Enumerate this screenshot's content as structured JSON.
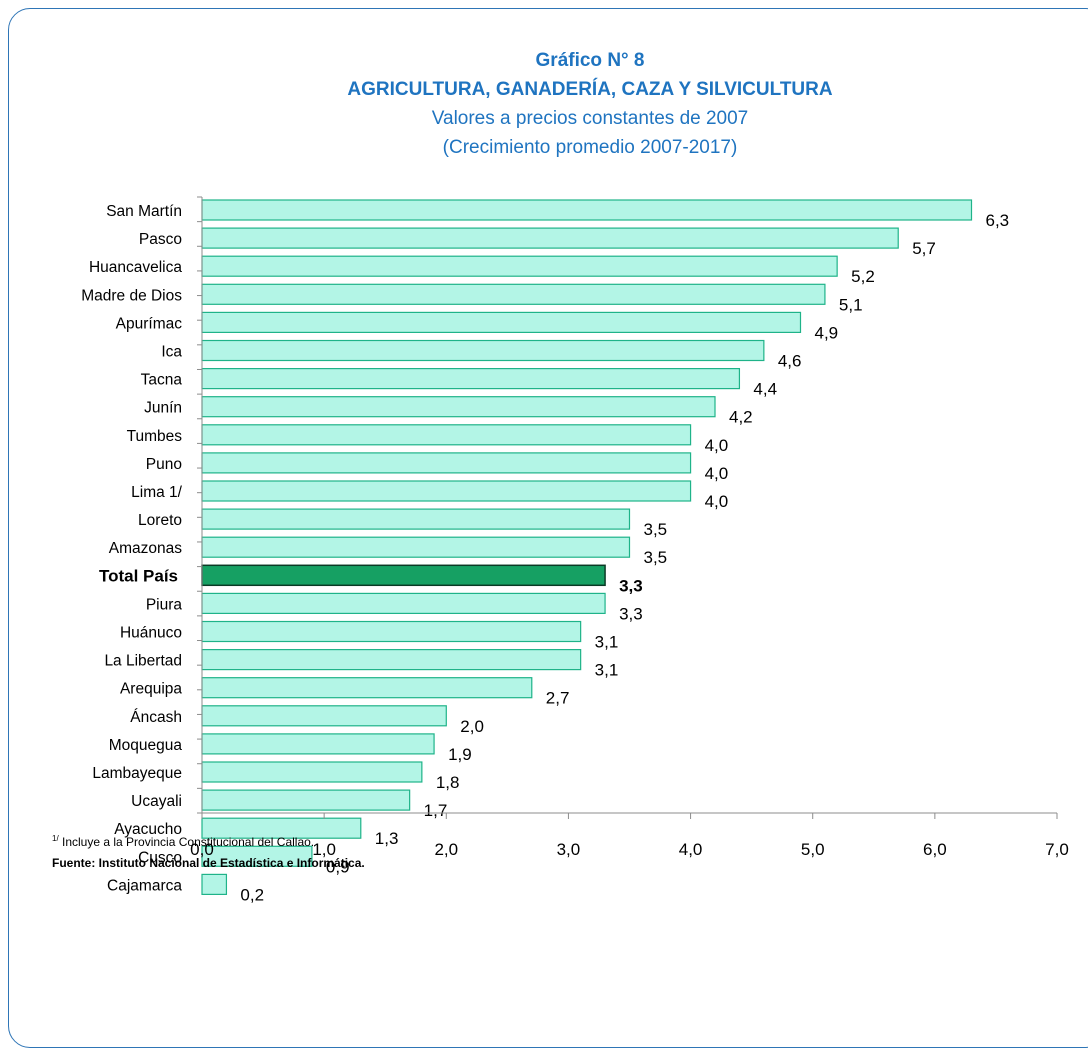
{
  "title": {
    "line1": "Gráfico N° 8",
    "line2": "AGRICULTURA,  GANADERÍA,  CAZA Y SILVICULTURA",
    "line3": "Valores a precios constantes de 2007",
    "line4": "(Crecimiento promedio 2007-2017)"
  },
  "footnote": {
    "marker": "1/",
    "text": " Incluye a la Provincia Constitucional del Callao.",
    "source": "Fuente: Instituto Nacional de Estadística e Informática."
  },
  "colors": {
    "title": "#1f74c0",
    "bar_fill": "#b3f5e6",
    "bar_stroke": "#1fb389",
    "highlight_fill": "#16a063",
    "highlight_stroke": "#0a3a25",
    "frame": "#2e75b6"
  },
  "chart_data": {
    "type": "bar",
    "orientation": "horizontal",
    "categories": [
      "San Martín",
      "Pasco",
      "Huancavelica",
      "Madre de Dios",
      "Apurímac",
      "Ica",
      "Tacna",
      "Junín",
      "Tumbes",
      "Puno",
      "Lima 1/",
      "Loreto",
      "Amazonas",
      "Total País",
      "Piura",
      "Huánuco",
      "La Libertad",
      "Arequipa",
      "Áncash",
      "Moquegua",
      "Lambayeque",
      "Ucayali",
      "Ayacucho",
      "Cusco",
      "Cajamarca"
    ],
    "values": [
      6.3,
      5.7,
      5.2,
      5.1,
      4.9,
      4.6,
      4.4,
      4.2,
      4.0,
      4.0,
      4.0,
      3.5,
      3.5,
      3.3,
      3.3,
      3.1,
      3.1,
      2.7,
      2.0,
      1.9,
      1.8,
      1.7,
      1.3,
      0.9,
      0.2
    ],
    "value_labels": [
      "6,3",
      "5,7",
      "5,2",
      "5,1",
      "4,9",
      "4,6",
      "4,4",
      "4,2",
      "4,0",
      "4,0",
      "4,0",
      "3,5",
      "3,5",
      "3,3",
      "3,3",
      "3,1",
      "3,1",
      "2,7",
      "2,0",
      "1,9",
      "1,8",
      "1,7",
      "1,3",
      "0,9",
      "0,2"
    ],
    "highlight": "Total País",
    "xlim": [
      0,
      7
    ],
    "xticks": [
      0,
      1,
      2,
      3,
      4,
      5,
      6,
      7
    ],
    "xtick_labels": [
      "0,0",
      "1,0",
      "2,0",
      "3,0",
      "4,0",
      "5,0",
      "6,0",
      "7,0"
    ],
    "grid": false
  }
}
